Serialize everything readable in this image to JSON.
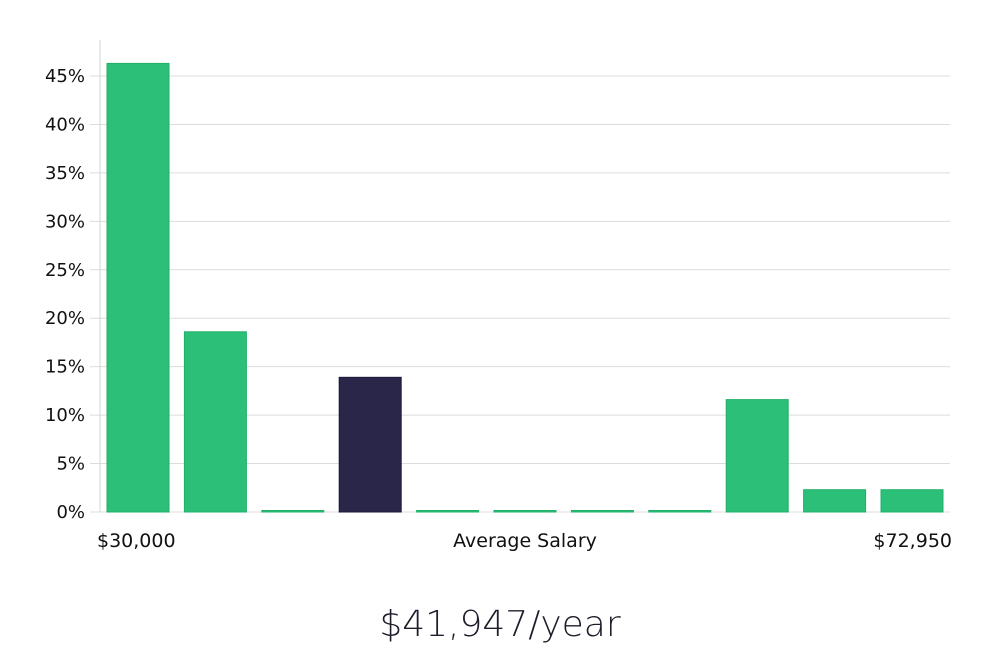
{
  "chart_data": {
    "type": "bar",
    "x_axis": {
      "min_label": "$30,000",
      "center_label": "Average Salary",
      "max_label": "$72,950"
    },
    "y_axis": {
      "ylim": [
        0,
        45
      ],
      "ticks": [
        0,
        5,
        10,
        15,
        20,
        25,
        30,
        35,
        40,
        45
      ],
      "tick_format": "percent"
    },
    "values": [
      46.3,
      18.6,
      0.1,
      13.9,
      0.1,
      0.1,
      0.1,
      0.1,
      11.6,
      2.3,
      2.3
    ],
    "highlight_index": 3,
    "grid": true,
    "colors": {
      "bar": "#2bbf77",
      "bar_edge": "#22b06a",
      "highlight": "#29264a",
      "highlight_edge": "#1c1a36"
    }
  },
  "salary": {
    "display": "$41,947/year"
  }
}
